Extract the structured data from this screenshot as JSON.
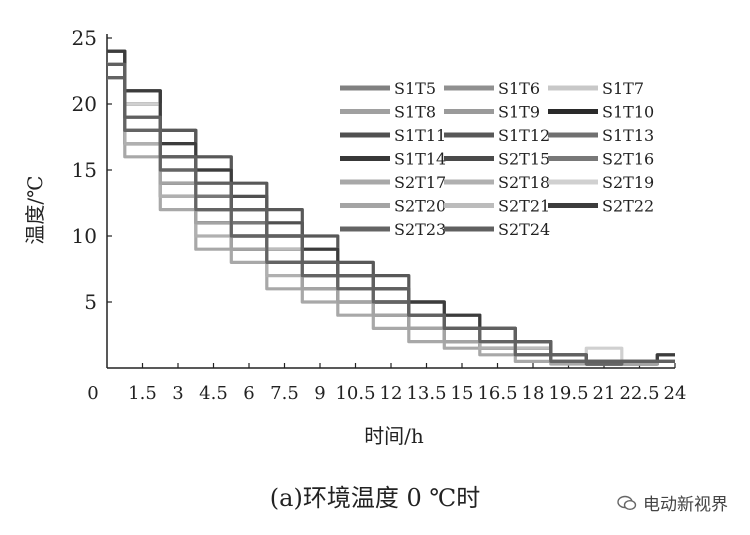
{
  "caption": "(a)环境温度 0 ℃时",
  "watermark": "电动新视界",
  "chart_data": {
    "type": "line",
    "xlabel": "时间/h",
    "ylabel": "温度/℃",
    "xlim": [
      0,
      24
    ],
    "ylim": [
      0,
      25
    ],
    "x_ticks": [
      "0",
      "1.5",
      "3",
      "4.5",
      "6",
      "7.5",
      "9",
      "10.5",
      "12",
      "13.5",
      "15",
      "16.5",
      "18",
      "19.5",
      "21",
      "22.5",
      "24"
    ],
    "y_ticks": [
      "5",
      "10",
      "15",
      "20",
      "25"
    ],
    "grid": false,
    "legend_position": "top-right",
    "series": [
      {
        "name": "S1T5",
        "color": "#808080",
        "x": [
          0,
          1.5,
          3,
          4.5,
          6,
          7.5,
          9,
          10.5,
          12,
          13.5,
          15,
          16.5,
          18,
          19.5,
          21,
          22.5,
          24
        ],
        "y": [
          23,
          20,
          16,
          13,
          11,
          9,
          8,
          7,
          5,
          4,
          3,
          2,
          1,
          0.5,
          0.3,
          0.5,
          0.5
        ]
      },
      {
        "name": "S1T6",
        "color": "#909090",
        "x": [
          0,
          1.5,
          3,
          4.5,
          6,
          7.5,
          9,
          10.5,
          12,
          13.5,
          15,
          16.5,
          18,
          19.5,
          21,
          22.5,
          24
        ],
        "y": [
          22,
          18,
          15,
          12,
          10,
          8,
          7,
          6,
          5,
          4,
          3,
          2,
          1.5,
          1,
          0.5,
          0.3,
          0.5
        ]
      },
      {
        "name": "S1T7",
        "color": "#c8c8c8",
        "x": [
          0,
          1.5,
          3,
          4.5,
          6,
          7.5,
          9,
          10.5,
          12,
          13.5,
          15,
          16.5,
          18,
          19.5,
          21,
          22.5,
          24
        ],
        "y": [
          24,
          21,
          18,
          16,
          13,
          11,
          9,
          8,
          6,
          5,
          4,
          3,
          2,
          1,
          0.5,
          0.5,
          0.5
        ]
      },
      {
        "name": "S1T8",
        "color": "#a0a0a0",
        "x": [
          0,
          1.5,
          3,
          4.5,
          6,
          7.5,
          9,
          10.5,
          12,
          13.5,
          15,
          16.5,
          18,
          19.5,
          21,
          22.5,
          24
        ],
        "y": [
          22,
          17,
          14,
          11,
          9,
          8,
          7,
          6,
          5,
          4,
          3,
          2,
          1,
          0.5,
          0.3,
          0.3,
          0.5
        ]
      },
      {
        "name": "S1T9",
        "color": "#9a9a9a",
        "x": [
          0,
          1.5,
          3,
          4.5,
          6,
          7.5,
          9,
          10.5,
          12,
          13.5,
          15,
          16.5,
          18,
          19.5,
          21,
          22.5,
          24
        ],
        "y": [
          23,
          19,
          15,
          12,
          10,
          9,
          7,
          6,
          5,
          4,
          3,
          2,
          1.5,
          1,
          0.5,
          0.5,
          0.5
        ]
      },
      {
        "name": "S1T10",
        "color": "#2a2a2a",
        "x": [
          0,
          1.5,
          3,
          4.5,
          6,
          7.5,
          9,
          10.5,
          12,
          13.5,
          15,
          16.5,
          18,
          19.5,
          21,
          22.5,
          24
        ],
        "y": [
          23,
          17,
          13,
          11,
          9,
          8,
          6,
          5,
          4,
          3,
          2,
          1.5,
          1,
          0.5,
          0.3,
          0.5,
          0.5
        ]
      },
      {
        "name": "S1T11",
        "color": "#505050",
        "x": [
          0,
          1.5,
          3,
          4.5,
          6,
          7.5,
          9,
          10.5,
          12,
          13.5,
          15,
          16.5,
          18,
          19.5,
          21,
          22.5,
          24
        ],
        "y": [
          24,
          21,
          18,
          15,
          13,
          11,
          9,
          7,
          6,
          5,
          4,
          3,
          2,
          1,
          0.5,
          0.5,
          0.5
        ]
      },
      {
        "name": "S1T12",
        "color": "#585858",
        "x": [
          0,
          1.5,
          3,
          4.5,
          6,
          7.5,
          9,
          10.5,
          12,
          13.5,
          15,
          16.5,
          18,
          19.5,
          21,
          22.5,
          24
        ],
        "y": [
          24,
          21,
          18,
          16,
          14,
          12,
          10,
          8,
          7,
          5,
          4,
          3,
          2,
          1,
          0.5,
          0.5,
          1
        ]
      },
      {
        "name": "S1T13",
        "color": "#707070",
        "x": [
          0,
          1.5,
          3,
          4.5,
          6,
          7.5,
          9,
          10.5,
          12,
          13.5,
          15,
          16.5,
          18,
          19.5,
          21,
          22.5,
          24
        ],
        "y": [
          23,
          20,
          17,
          14,
          12,
          10,
          8,
          7,
          6,
          4,
          3,
          2,
          1.5,
          1,
          0.5,
          0.5,
          0.5
        ]
      },
      {
        "name": "S1T14",
        "color": "#383838",
        "x": [
          0,
          1.5,
          3,
          4.5,
          6,
          7.5,
          9,
          10.5,
          12,
          13.5,
          15,
          16.5,
          18,
          19.5,
          21,
          22.5,
          24
        ],
        "y": [
          23,
          18,
          14,
          12,
          10,
          8,
          7,
          6,
          5,
          4,
          3,
          2,
          1,
          0.5,
          0.3,
          0.5,
          0.5
        ]
      },
      {
        "name": "S2T15",
        "color": "#4a4a4a",
        "x": [
          0,
          1.5,
          3,
          4.5,
          6,
          7.5,
          9,
          10.5,
          12,
          13.5,
          15,
          16.5,
          18,
          19.5,
          21,
          22.5,
          24
        ],
        "y": [
          23,
          19,
          16,
          13,
          11,
          9,
          8,
          6,
          5,
          4,
          3,
          2,
          1,
          0.5,
          0.3,
          0.3,
          0.5
        ]
      },
      {
        "name": "S2T16",
        "color": "#787878",
        "x": [
          0,
          1.5,
          3,
          4.5,
          6,
          7.5,
          9,
          10.5,
          12,
          13.5,
          15,
          16.5,
          18,
          19.5,
          21,
          22.5,
          24
        ],
        "y": [
          23,
          20,
          16,
          13,
          11,
          10,
          8,
          7,
          6,
          5,
          4,
          3,
          2,
          1,
          0.5,
          0.5,
          0.5
        ]
      },
      {
        "name": "S2T17",
        "color": "#a8a8a8",
        "x": [
          0,
          1.5,
          3,
          4.5,
          6,
          7.5,
          9,
          10.5,
          12,
          13.5,
          15,
          16.5,
          18,
          19.5,
          21,
          22.5,
          24
        ],
        "y": [
          22,
          16,
          12,
          9,
          8,
          6,
          5,
          4,
          3,
          2,
          1.5,
          1,
          0.5,
          0.3,
          0.5,
          0.3,
          0.5
        ]
      },
      {
        "name": "S2T18",
        "color": "#b0b0b0",
        "x": [
          0,
          1.5,
          3,
          4.5,
          6,
          7.5,
          9,
          10.5,
          12,
          13.5,
          15,
          16.5,
          18,
          19.5,
          21,
          22.5,
          24
        ],
        "y": [
          22,
          17,
          13,
          10,
          9,
          7,
          6,
          5,
          4,
          3,
          2,
          1.5,
          1,
          0.5,
          0.3,
          0.5,
          0.5
        ]
      },
      {
        "name": "S2T19",
        "color": "#d0d0d0",
        "x": [
          0,
          1.5,
          3,
          4.5,
          6,
          7.5,
          9,
          10.5,
          12,
          13.5,
          15,
          16.5,
          18,
          19.5,
          21,
          22.5,
          24
        ],
        "y": [
          23,
          20,
          17,
          15,
          12,
          10,
          9,
          7,
          6,
          5,
          4,
          3,
          2,
          1,
          1.5,
          0.5,
          0.5
        ]
      },
      {
        "name": "S2T20",
        "color": "#a4a4a4",
        "x": [
          0,
          1.5,
          3,
          4.5,
          6,
          7.5,
          9,
          10.5,
          12,
          13.5,
          15,
          16.5,
          18,
          19.5,
          21,
          22.5,
          24
        ],
        "y": [
          22,
          18,
          14,
          11,
          9,
          8,
          6,
          5,
          4,
          3,
          2,
          2,
          1,
          1,
          0.5,
          0.3,
          0.5
        ]
      },
      {
        "name": "S2T21",
        "color": "#bcbcbc",
        "x": [
          0,
          1.5,
          3,
          4.5,
          6,
          7.5,
          9,
          10.5,
          12,
          13.5,
          15,
          16.5,
          18,
          19.5,
          21,
          22.5,
          24
        ],
        "y": [
          23,
          19,
          15,
          12,
          10,
          9,
          7,
          6,
          5,
          4,
          3,
          2,
          1.5,
          1,
          0.5,
          0.5,
          0.5
        ]
      },
      {
        "name": "S2T22",
        "color": "#3c3c3c",
        "x": [
          0,
          1.5,
          3,
          4.5,
          6,
          7.5,
          9,
          10.5,
          12,
          13.5,
          15,
          16.5,
          18,
          19.5,
          21,
          22.5,
          24
        ],
        "y": [
          24,
          21,
          17,
          15,
          12,
          10,
          9,
          7,
          6,
          5,
          4,
          3,
          2,
          1,
          0.5,
          0.5,
          1
        ]
      },
      {
        "name": "S2T23",
        "color": "#646464",
        "x": [
          0,
          1.5,
          3,
          4.5,
          6,
          7.5,
          9,
          10.5,
          12,
          13.5,
          15,
          16.5,
          18,
          19.5,
          21,
          22.5,
          24
        ],
        "y": [
          22,
          18,
          15,
          12,
          10,
          8,
          7,
          6,
          5,
          4,
          3,
          2,
          1,
          0.5,
          0.3,
          0.5,
          0.5
        ]
      },
      {
        "name": "S2T24",
        "color": "#606060",
        "x": [
          0,
          1.5,
          3,
          4.5,
          6,
          7.5,
          9,
          10.5,
          12,
          13.5,
          15,
          16.5,
          18,
          19.5,
          21,
          22.5,
          24
        ],
        "y": [
          23,
          19,
          16,
          14,
          12,
          10,
          8,
          7,
          6,
          4,
          3,
          3,
          2,
          1,
          0.5,
          0.5,
          0.5
        ]
      }
    ]
  }
}
